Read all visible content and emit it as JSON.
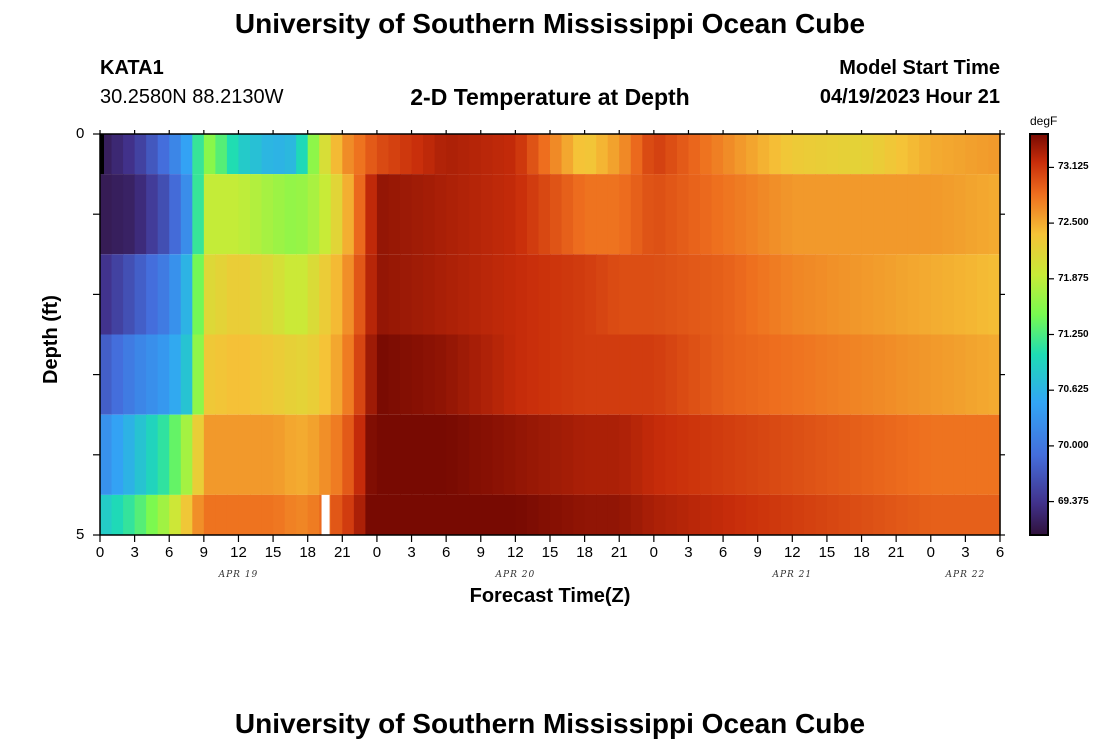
{
  "title": "University of Southern Mississippi Ocean Cube",
  "bottom_title": "University of Southern Mississippi Ocean Cube",
  "station": {
    "id": "KATA1",
    "coords": "30.2580N  88.2130W"
  },
  "model": {
    "label": "Model Start Time",
    "start": "04/19/2023 Hour 21"
  },
  "chart_data": {
    "type": "heatmap",
    "title": "2-D Temperature at Depth",
    "xlabel": "Forecast Time(Z)",
    "ylabel": "Depth (ft)",
    "units": "degF",
    "x_tick_labels": [
      "0",
      "3",
      "6",
      "9",
      "12",
      "15",
      "18",
      "21",
      "0",
      "3",
      "6",
      "9",
      "12",
      "15",
      "18",
      "21",
      "0",
      "3",
      "6",
      "9",
      "12",
      "15",
      "18",
      "21",
      "0",
      "3",
      "6"
    ],
    "date_labels": [
      "APR 19",
      "APR 20",
      "APR 21",
      "APR 22"
    ],
    "y_tick_labels": [
      "0",
      "5"
    ],
    "ylim": [
      0,
      5
    ],
    "x_range_hours": [
      0,
      78
    ],
    "colorbar_ticks": [
      "73.125",
      "72.500",
      "71.875",
      "71.250",
      "70.625",
      "70.000",
      "69.375"
    ],
    "colorbar_range": [
      69.0,
      73.5
    ],
    "depth_rows": [
      0,
      1,
      2,
      3,
      4,
      5
    ],
    "key_hours": [
      0,
      3,
      6,
      8,
      9,
      12,
      15,
      17,
      18,
      19,
      21,
      24,
      30,
      36,
      42,
      45,
      48,
      54,
      60,
      66,
      72,
      78
    ],
    "temperature_degF": [
      [
        69.1,
        69.4,
        70.0,
        70.6,
        71.7,
        70.9,
        70.6,
        70.7,
        71.3,
        71.9,
        72.6,
        73.0,
        73.3,
        73.2,
        72.3,
        72.6,
        73.1,
        72.7,
        72.3,
        72.2,
        72.5,
        72.6
      ],
      [
        69.1,
        69.2,
        69.7,
        70.4,
        71.9,
        71.9,
        71.7,
        71.6,
        71.7,
        71.8,
        72.3,
        73.4,
        73.3,
        73.2,
        72.8,
        72.8,
        73.0,
        72.8,
        72.6,
        72.6,
        72.6,
        72.5
      ],
      [
        69.3,
        69.7,
        70.1,
        70.8,
        72.1,
        72.3,
        72.1,
        71.9,
        72.0,
        72.2,
        72.5,
        73.4,
        73.3,
        73.2,
        73.1,
        73.0,
        73.0,
        72.9,
        72.7,
        72.6,
        72.5,
        72.4
      ],
      [
        69.7,
        70.1,
        70.4,
        70.9,
        72.3,
        72.4,
        72.3,
        72.2,
        72.2,
        72.3,
        72.6,
        73.5,
        73.4,
        73.2,
        73.1,
        73.1,
        73.1,
        72.9,
        72.8,
        72.7,
        72.6,
        72.5
      ],
      [
        70.2,
        70.7,
        71.2,
        71.9,
        72.6,
        72.6,
        72.6,
        72.5,
        72.5,
        72.6,
        72.8,
        73.6,
        73.5,
        73.4,
        73.3,
        73.3,
        73.2,
        73.1,
        73.0,
        72.9,
        72.8,
        72.8
      ],
      [
        70.8,
        71.2,
        71.8,
        72.5,
        72.8,
        72.8,
        72.8,
        72.7,
        72.7,
        72.8,
        73.0,
        73.6,
        73.6,
        73.5,
        73.4,
        73.4,
        73.3,
        73.2,
        73.1,
        73.0,
        72.9,
        72.9
      ]
    ],
    "missing_cells": [
      {
        "hour": 0,
        "depth": 0
      },
      {
        "hour": 19,
        "depth": 5
      }
    ]
  }
}
